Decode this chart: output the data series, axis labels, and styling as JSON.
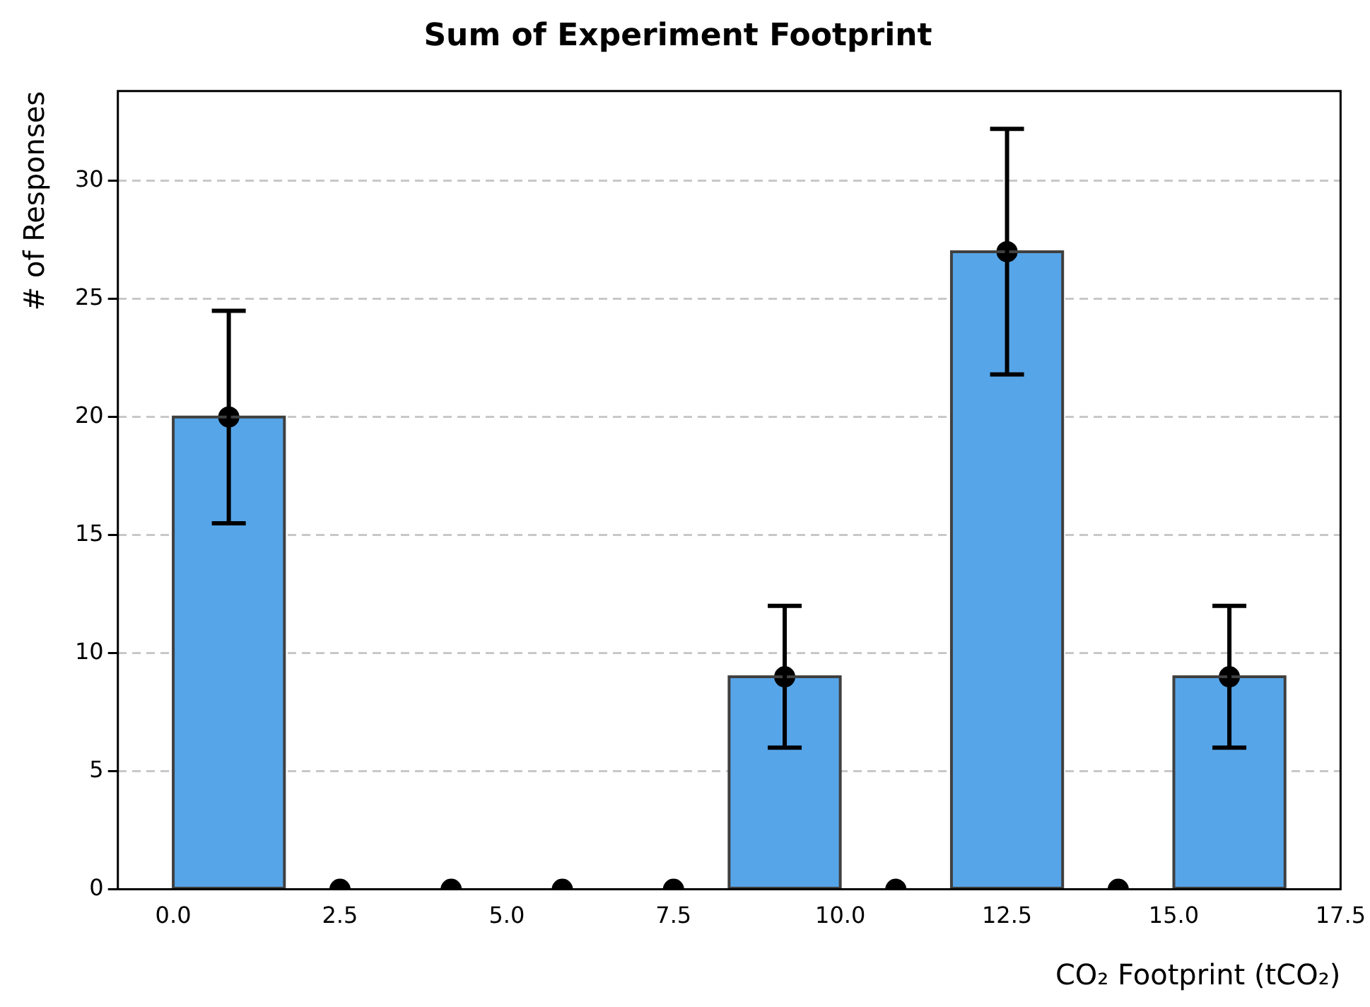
{
  "chart_data": {
    "type": "histogram",
    "title": "Sum of Experiment Footprint",
    "xlabel": "CO₂ Footprint (tCO₂)",
    "ylabel": "# of Responses",
    "bins": [
      0,
      1.667,
      3.333,
      5,
      6.667,
      8.333,
      10,
      11.667,
      13.333,
      15,
      16.667
    ],
    "series": [
      {
        "color": "#56a5e8",
        "values": [
          20,
          0,
          0,
          0,
          0,
          9,
          0,
          27,
          0,
          9
        ]
      },
      {
        "type": "scatter",
        "color": "#000000",
        "x": [
          0.833,
          2.5,
          4.167,
          5.833,
          7.5,
          9.167,
          10.833,
          12.5,
          14.167,
          15.833
        ],
        "values": [
          20,
          0,
          0,
          0,
          0,
          9,
          0,
          27,
          0,
          9
        ],
        "errors": [
          4.5,
          null,
          null,
          null,
          null,
          3,
          null,
          5.2,
          null,
          3
        ]
      }
    ],
    "xlim": [
      -0.83,
      17.5
    ],
    "xticks": [
      {
        "value": 0,
        "label": "0.0"
      },
      {
        "value": 2.5,
        "label": "2.5"
      },
      {
        "value": 5,
        "label": "5.0"
      },
      {
        "value": 7.5,
        "label": "7.5"
      },
      {
        "value": 10,
        "label": "10.0"
      },
      {
        "value": 12.5,
        "label": "12.5"
      },
      {
        "value": 15,
        "label": "15.0"
      },
      {
        "value": 17.5,
        "label": "17.5"
      }
    ],
    "ylim": [
      0,
      33.8
    ],
    "yticks": [
      0,
      5,
      10,
      15,
      20,
      25,
      30
    ],
    "grid": "y",
    "line_style": "dashed",
    "marker": "circle"
  }
}
